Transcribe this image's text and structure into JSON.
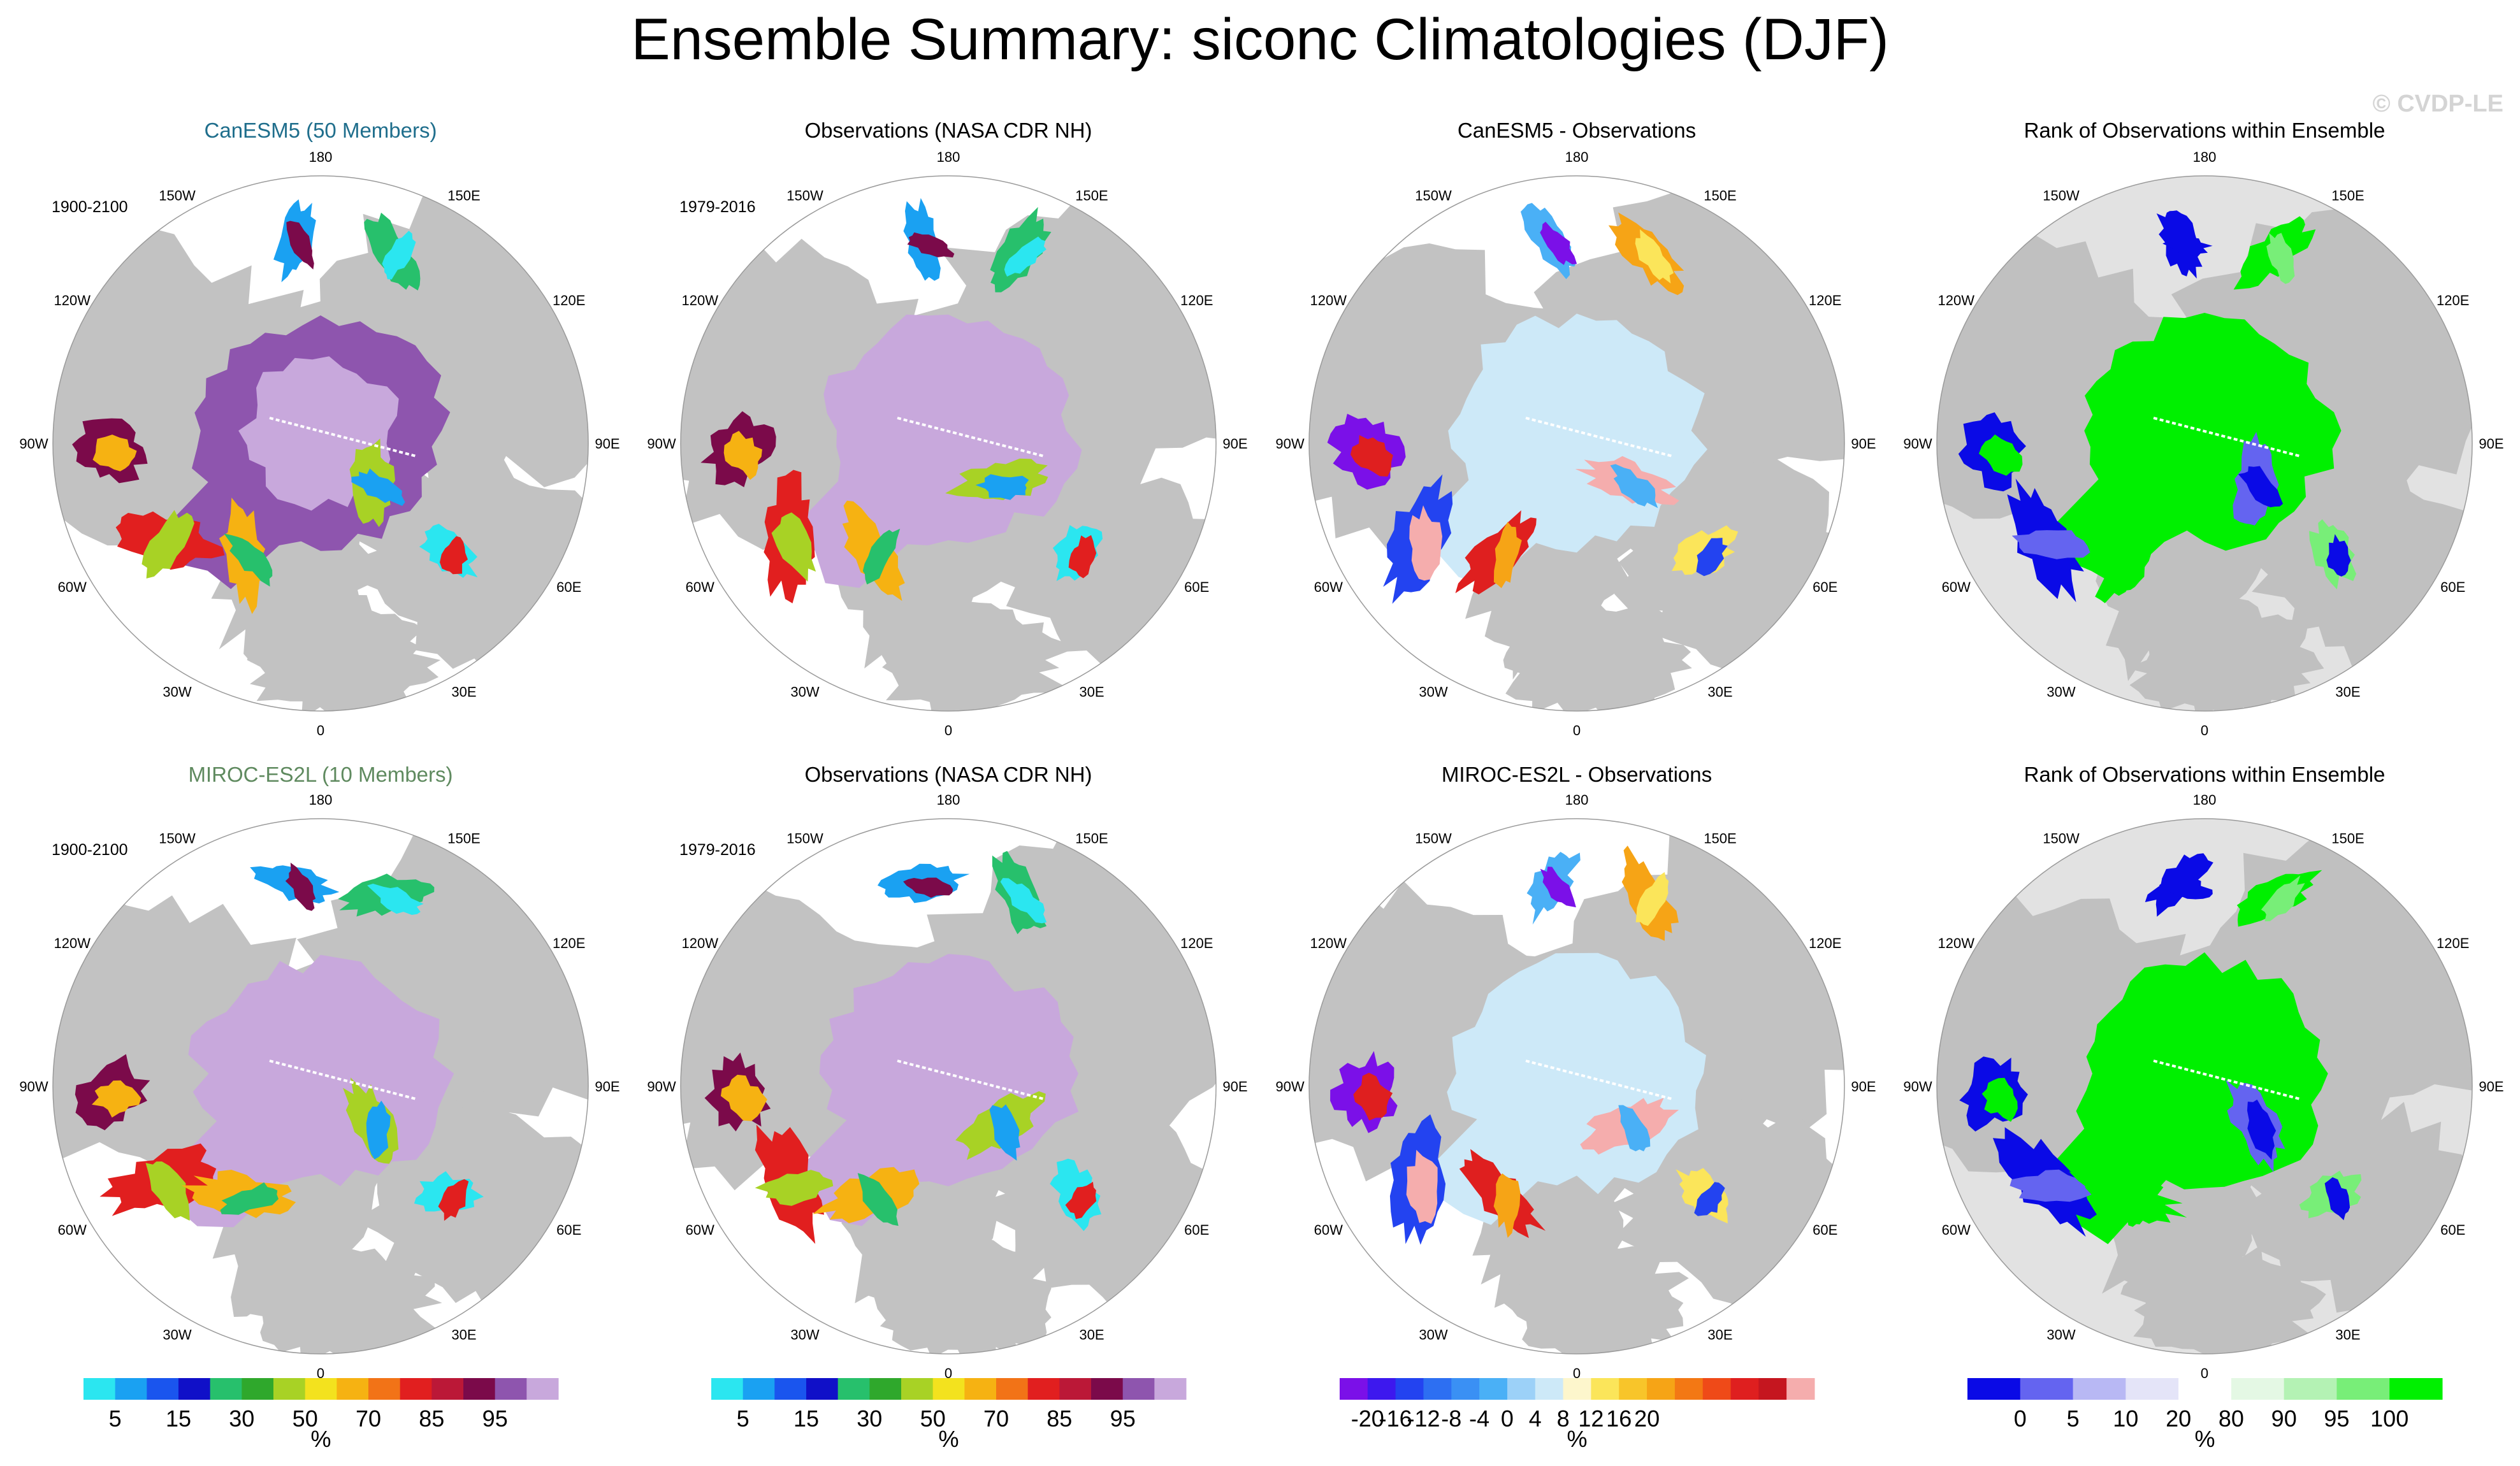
{
  "figure": {
    "title": "Ensemble Summary: siconc Climatologies (DJF)",
    "watermark": "© CVDP-LE"
  },
  "lon_labels": [
    "180",
    "150E",
    "120E",
    "90E",
    "60E",
    "30E",
    "0",
    "30W",
    "60W",
    "90W",
    "120W",
    "150W"
  ],
  "chart_data": [
    {
      "type": "heatmap",
      "row": 1,
      "col": 1,
      "title": "CanESM5 (50 Members)",
      "period": "1900-2100",
      "fill": "concentration",
      "seed": 1,
      "colorbar": null
    },
    {
      "type": "heatmap",
      "row": 1,
      "col": 2,
      "title": "Observations (NASA CDR NH)",
      "period": "1979-2016",
      "fill": "concentration",
      "seed": 2,
      "colorbar": null
    },
    {
      "type": "heatmap",
      "row": 1,
      "col": 3,
      "title": "CanESM5 - Observations",
      "period": "",
      "fill": "difference",
      "seed": 3,
      "colorbar": null
    },
    {
      "type": "heatmap",
      "row": 1,
      "col": 4,
      "title": "Rank of Observations within Ensemble",
      "period": "",
      "fill": "rank",
      "seed": 4,
      "colorbar": null
    },
    {
      "type": "heatmap",
      "row": 2,
      "col": 1,
      "title": "MIROC-ES2L (10 Members)",
      "period": "1900-2100",
      "fill": "concentration",
      "seed": 5,
      "colorbar": {
        "colors": [
          "#2be6f0",
          "#1aa1f2",
          "#1a55ee",
          "#1010c8",
          "#27c06c",
          "#2fa82c",
          "#a8d225",
          "#f3e21e",
          "#f6b212",
          "#f27317",
          "#e11f1f",
          "#bb1837",
          "#7b0a4a",
          "#8e55ae",
          "#c8a8dc"
        ],
        "tick_labels": [
          "5",
          "15",
          "30",
          "50",
          "70",
          "85",
          "95"
        ],
        "tick_bounds": [
          1,
          3,
          5,
          7,
          9,
          11,
          13
        ],
        "unit": "%"
      }
    },
    {
      "type": "heatmap",
      "row": 2,
      "col": 2,
      "title": "Observations (NASA CDR NH)",
      "period": "1979-2016",
      "fill": "concentration",
      "seed": 6,
      "colorbar": {
        "colors": [
          "#2be6f0",
          "#1aa1f2",
          "#1a55ee",
          "#1010c8",
          "#27c06c",
          "#2fa82c",
          "#a8d225",
          "#f3e21e",
          "#f6b212",
          "#f27317",
          "#e11f1f",
          "#bb1837",
          "#7b0a4a",
          "#8e55ae",
          "#c8a8dc"
        ],
        "tick_labels": [
          "5",
          "15",
          "30",
          "50",
          "70",
          "85",
          "95"
        ],
        "tick_bounds": [
          1,
          3,
          5,
          7,
          9,
          11,
          13
        ],
        "unit": "%"
      }
    },
    {
      "type": "heatmap",
      "row": 2,
      "col": 3,
      "title": "MIROC-ES2L - Observations",
      "period": "",
      "fill": "difference",
      "seed": 7,
      "colorbar": {
        "colors": [
          "#7b10e8",
          "#3d18ee",
          "#2343f0",
          "#2d6ff2",
          "#3a90f4",
          "#4ab0f6",
          "#9cd1f8",
          "#cde9f8",
          "#fdf6cc",
          "#fbe55a",
          "#f8c52a",
          "#f6a416",
          "#f37814",
          "#ef4a18",
          "#df1f1f",
          "#c5161f",
          "#f5adad"
        ],
        "tick_labels": [
          "-20",
          "-16",
          "-12",
          "-8",
          "-4",
          "0",
          "4",
          "8",
          "12",
          "16",
          "20"
        ],
        "tick_bounds": [
          1,
          2,
          3,
          4,
          5,
          6,
          7,
          8,
          9,
          10,
          11
        ],
        "unit": "%"
      }
    },
    {
      "type": "heatmap",
      "row": 2,
      "col": 4,
      "title": "Rank of Observations within Ensemble",
      "period": "",
      "fill": "rank",
      "seed": 8,
      "colorbar": {
        "colors": [
          "#0a0ae6",
          "#6464f0",
          "#b8b8f4",
          "#e4e4f8",
          "#ffffff",
          "#e4f8e4",
          "#b4f2b4",
          "#78ee78",
          "#00f000"
        ],
        "tick_labels": [
          "0",
          "5",
          "10",
          "20",
          "80",
          "90",
          "95",
          "100"
        ],
        "tick_bounds": [
          1,
          2,
          3,
          4,
          5,
          6,
          7,
          8
        ],
        "unit": "%"
      }
    }
  ]
}
